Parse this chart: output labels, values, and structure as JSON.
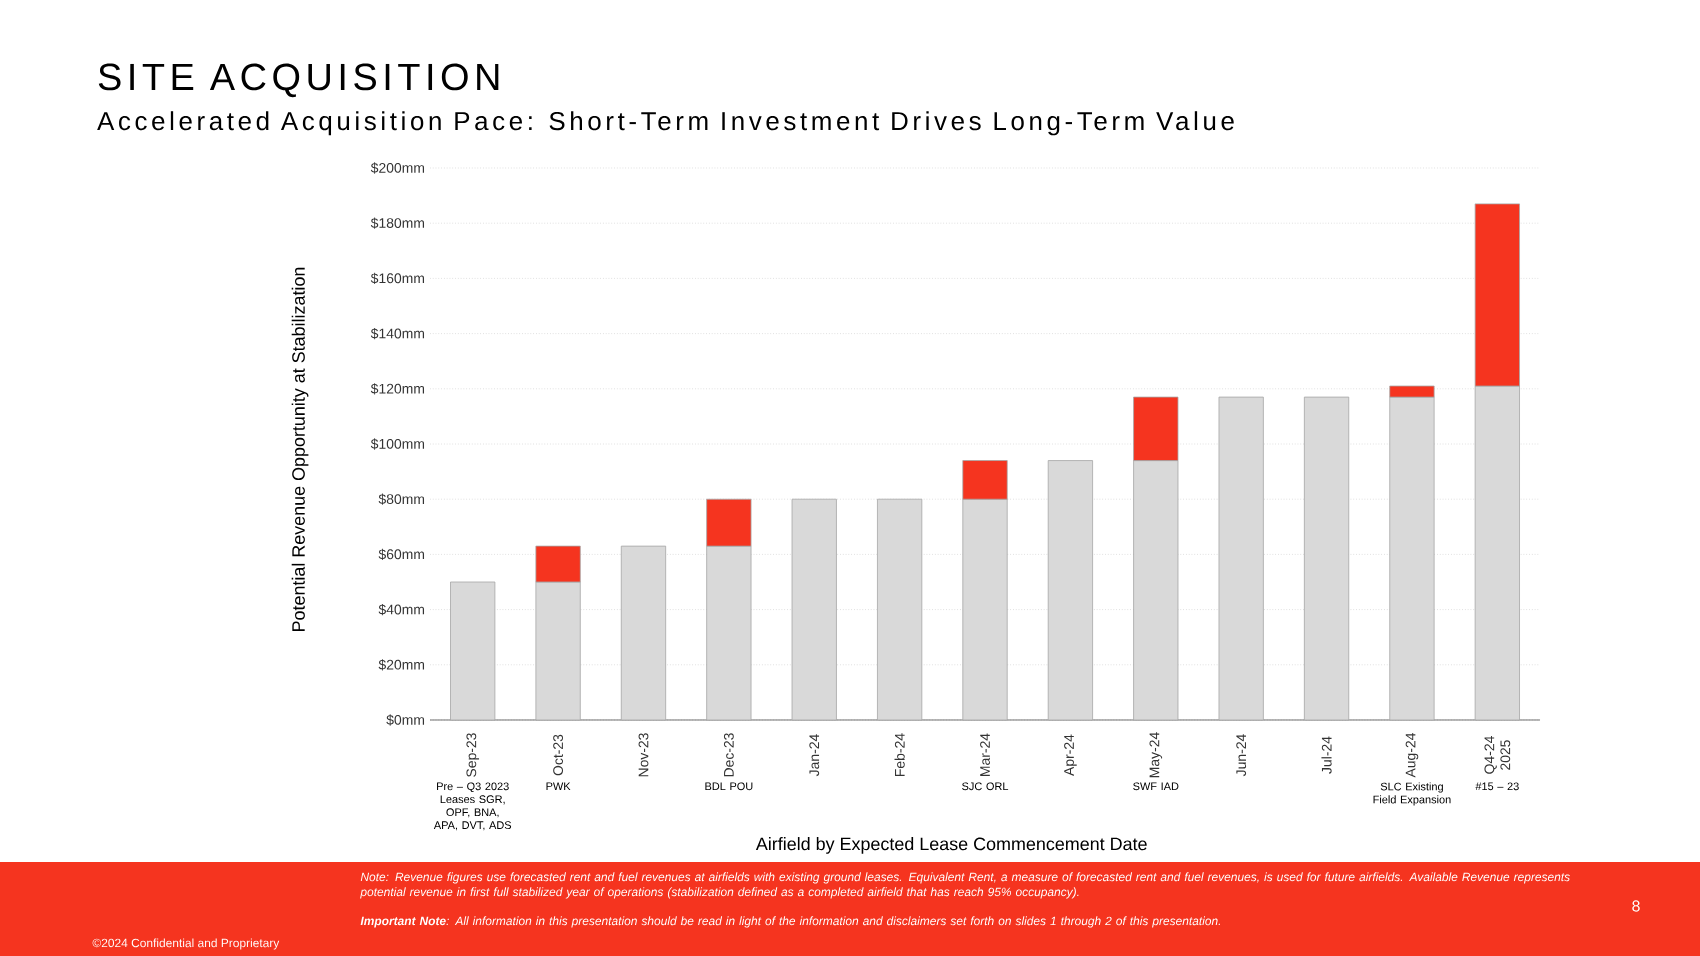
{
  "chart_data": {
    "type": "bar",
    "stacked": true,
    "title": "SITE ACQUISITION",
    "subtitle": "Accelerated Acquisition Pace: Short-Term Investment Drives Long-Term Value",
    "xlabel": "Airfield by Expected Lease Commencement Date",
    "ylabel": "Potential Revenue Opportunity at Stabilization",
    "categories": [
      "Sep-23",
      "Oct-23",
      "Nov-23",
      "Dec-23",
      "Jan-24",
      "Feb-24",
      "Mar-24",
      "Apr-24",
      "May-24",
      "Jun-24",
      "Jul-24",
      "Aug-24",
      "Q4-24 2025"
    ],
    "series": [
      {
        "color": "#d9d9d9",
        "values": [
          50,
          50,
          63,
          63,
          80,
          80,
          80,
          94,
          94,
          117,
          117,
          117,
          121
        ]
      },
      {
        "color": "#f5341f",
        "values": [
          null,
          13,
          null,
          17,
          null,
          null,
          14,
          null,
          23,
          null,
          null,
          4,
          66
        ]
      }
    ],
    "ylim": [
      0,
      200
    ],
    "yticks": [
      {
        "value": 0,
        "label": "$0mm"
      },
      {
        "value": 20,
        "label": "$20mm"
      },
      {
        "value": 40,
        "label": "$40mm"
      },
      {
        "value": 60,
        "label": "$60mm"
      },
      {
        "value": 80,
        "label": "$80mm"
      },
      {
        "value": 100,
        "label": "$100mm"
      },
      {
        "value": 120,
        "label": "$120mm"
      },
      {
        "value": 140,
        "label": "$140mm"
      },
      {
        "value": 160,
        "label": "$160mm"
      },
      {
        "value": 180,
        "label": "$180mm"
      },
      {
        "value": 200,
        "label": "$200mm"
      }
    ],
    "grid": "y",
    "annotations": [
      "Pre – Q3 2023 Leases SGR, OPF, BNA, APA, DVT, ADS",
      "PWK",
      "BDL POU",
      "SJC ORL",
      "SWF IAD",
      "SLC Existing Field Expansion",
      "#15 – 23",
      "Note: Revenue figures use forecasted rent and fuel revenues at airfields with existing ground leases. Equivalent Rent, a measure of forecasted rent and fuel revenues, is used for future airfields. Available Revenue represents potential revenue in first full stabilized year of operations (stabilization defined as a completed airfield that has reach 95% occupancy).",
      "**Important Note**: All information in this presentation should be read in light of the information and disclaimers set forth on slides 1 through 2 of this presentation.",
      "©2024 Confidential and Proprietary",
      "8"
    ]
  }
}
